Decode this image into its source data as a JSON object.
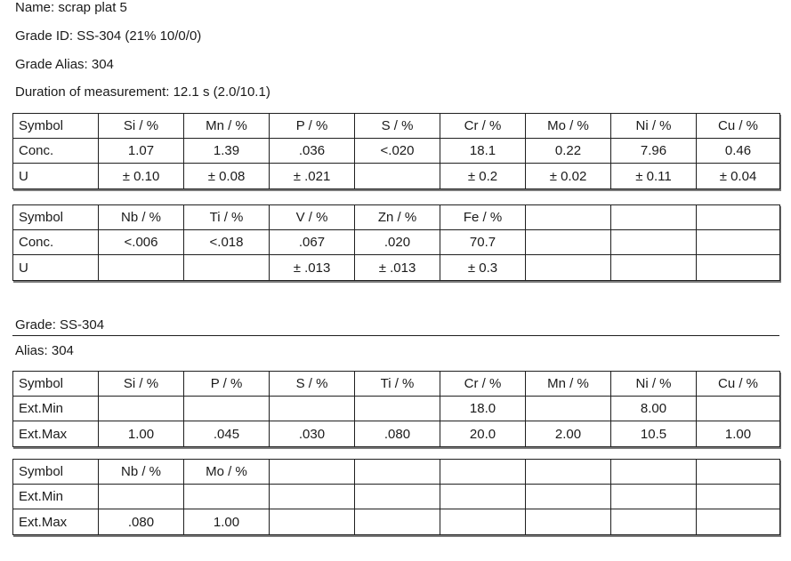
{
  "header": {
    "name": "Name:  scrap plat 5",
    "grade_id": "Grade ID:  SS-304 (21% 10/0/0)",
    "grade_alias": "Grade Alias:  304",
    "duration": "Duration of measurement: 12.1 s  (2.0/10.1)"
  },
  "results1": [
    [
      "Symbol",
      "Si / %",
      "Mn / %",
      "P / %",
      "S / %",
      "Cr / %",
      "Mo / %",
      "Ni / %",
      "Cu / %"
    ],
    [
      "Conc.",
      "1.07",
      "1.39",
      ".036",
      "<.020",
      "18.1",
      "0.22",
      "7.96",
      "0.46"
    ],
    [
      "U",
      "± 0.10",
      "± 0.08",
      "± .021",
      "",
      "± 0.2",
      "± 0.02",
      "± 0.11",
      "± 0.04"
    ]
  ],
  "results2": [
    [
      "Symbol",
      "Nb / %",
      "Ti / %",
      "V / %",
      "Zn / %",
      "Fe / %",
      "",
      "",
      ""
    ],
    [
      "Conc.",
      "<.006",
      "<.018",
      ".067",
      ".020",
      "70.7",
      "",
      "",
      ""
    ],
    [
      "U",
      "",
      "",
      "± .013",
      "± .013",
      "± 0.3",
      "",
      "",
      ""
    ]
  ],
  "grade": {
    "title": "Grade: SS-304",
    "alias": "Alias: 304"
  },
  "limits1": [
    [
      "Symbol",
      "Si / %",
      "P / %",
      "S / %",
      "Ti / %",
      "Cr / %",
      "Mn / %",
      "Ni / %",
      "Cu / %"
    ],
    [
      "Ext.Min",
      "",
      "",
      "",
      "",
      "18.0",
      "",
      "8.00",
      ""
    ],
    [
      "Ext.Max",
      "1.00",
      ".045",
      ".030",
      ".080",
      "20.0",
      "2.00",
      "10.5",
      "1.00"
    ]
  ],
  "limits2": [
    [
      "Symbol",
      "Nb / %",
      "Mo / %",
      "",
      "",
      "",
      "",
      "",
      ""
    ],
    [
      "Ext.Min",
      "",
      "",
      "",
      "",
      "",
      "",
      "",
      ""
    ],
    [
      "Ext.Max",
      ".080",
      "1.00",
      "",
      "",
      "",
      "",
      "",
      ""
    ]
  ]
}
